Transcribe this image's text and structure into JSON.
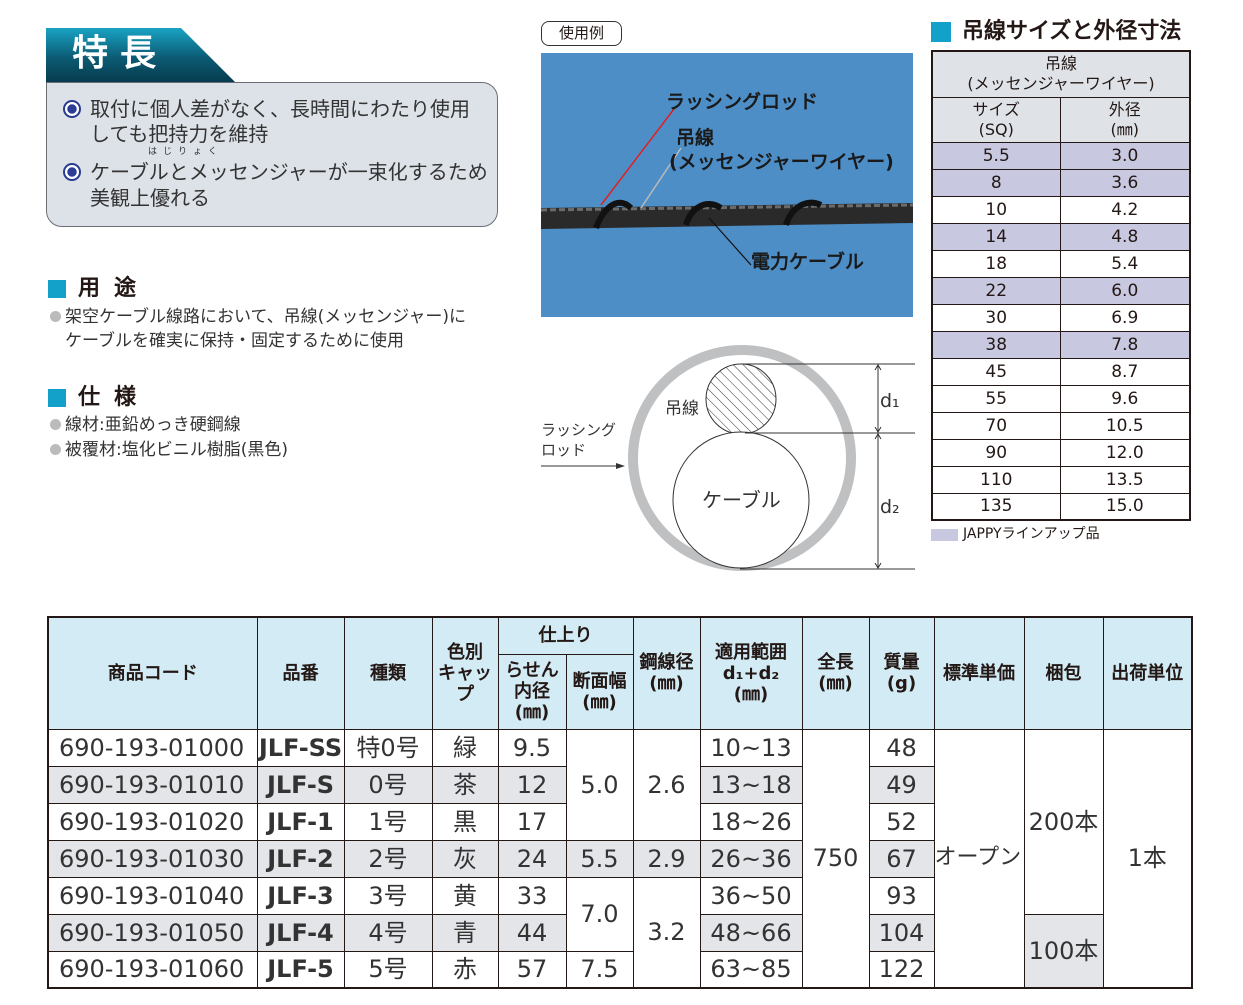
{
  "features": {
    "title": "特長",
    "items": [
      {
        "line1": "取付に個人差がなく、長時間にわたり使用",
        "line2": "しても把持力を維持"
      },
      {
        "line1": "ケーブルとメッセンジャーが一束化するため",
        "line2": "美観上優れる"
      }
    ],
    "ruby": "はじりょく"
  },
  "usage": {
    "title": "用途",
    "lines": [
      "架空ケーブル線路において、吊線(メッセンジャー)に",
      "ケーブルを確実に保持・固定するために使用"
    ]
  },
  "spec": {
    "title": "仕様",
    "items": [
      "線材:亜鉛めっき硬鋼線",
      "被覆材:塩化ビニル樹脂(黒色)"
    ]
  },
  "example": {
    "label": "使用例",
    "photo_labels": {
      "rod": "ラッシングロッド",
      "wire": "吊線",
      "wire_sub": "(メッセンジャーワイヤー)",
      "cable": "電力ケーブル"
    },
    "diagram_labels": {
      "wire": "吊線",
      "rod1": "ラッシング",
      "rod2": "ロッド",
      "cable": "ケーブル",
      "d1": "d₁",
      "d2": "d₂"
    }
  },
  "size_table": {
    "title": "吊線サイズと外径寸法",
    "group_header": "吊線",
    "group_sub": "(メッセンジャーワイヤー)",
    "col1": "サイズ",
    "col1_unit": "(SQ)",
    "col2": "外径",
    "col2_unit": "(㎜)",
    "rows": [
      {
        "size": "5.5",
        "od": "3.0",
        "lineup": true
      },
      {
        "size": "8",
        "od": "3.6",
        "lineup": true
      },
      {
        "size": "10",
        "od": "4.2",
        "lineup": false
      },
      {
        "size": "14",
        "od": "4.8",
        "lineup": true
      },
      {
        "size": "18",
        "od": "5.4",
        "lineup": false
      },
      {
        "size": "22",
        "od": "6.0",
        "lineup": true
      },
      {
        "size": "30",
        "od": "6.9",
        "lineup": false
      },
      {
        "size": "38",
        "od": "7.8",
        "lineup": true
      },
      {
        "size": "45",
        "od": "8.7",
        "lineup": false
      },
      {
        "size": "55",
        "od": "9.6",
        "lineup": false
      },
      {
        "size": "70",
        "od": "10.5",
        "lineup": false
      },
      {
        "size": "90",
        "od": "12.0",
        "lineup": false
      },
      {
        "size": "110",
        "od": "13.5",
        "lineup": false
      },
      {
        "size": "135",
        "od": "15.0",
        "lineup": false
      }
    ],
    "legend": "JAPPYラインアップ品",
    "highlight_color": "#c8c8e0"
  },
  "main_table": {
    "headers": {
      "code": "商品コード",
      "part": "品番",
      "type": "種類",
      "cap1": "色別",
      "cap2": "キャップ",
      "finish": "仕上り",
      "inner1": "らせん",
      "inner2": "内径",
      "inner3": "(㎜)",
      "width1": "断面幅",
      "width2": "(㎜)",
      "steel1": "鋼線径",
      "steel2": "(㎜)",
      "range1": "適用範囲",
      "range2": "d₁+d₂",
      "range3": "(㎜)",
      "len1": "全長",
      "len2": "(㎜)",
      "mass1": "質量",
      "mass2": "(g)",
      "price": "標準単価",
      "pack": "梱包",
      "unit": "出荷単位"
    },
    "rows": [
      {
        "code": "690-193-01000",
        "part": "JLF-SS",
        "type": "特0号",
        "cap": "緑",
        "inner": "9.5",
        "range": "10~13",
        "mass": "48"
      },
      {
        "code": "690-193-01010",
        "part": "JLF-S",
        "type": "0号",
        "cap": "茶",
        "inner": "12",
        "range": "13~18",
        "mass": "49"
      },
      {
        "code": "690-193-01020",
        "part": "JLF-1",
        "type": "1号",
        "cap": "黒",
        "inner": "17",
        "range": "18~26",
        "mass": "52"
      },
      {
        "code": "690-193-01030",
        "part": "JLF-2",
        "type": "2号",
        "cap": "灰",
        "inner": "24",
        "range": "26~36",
        "mass": "67"
      },
      {
        "code": "690-193-01040",
        "part": "JLF-3",
        "type": "3号",
        "cap": "黄",
        "inner": "33",
        "range": "36~50",
        "mass": "93"
      },
      {
        "code": "690-193-01050",
        "part": "JLF-4",
        "type": "4号",
        "cap": "青",
        "inner": "44",
        "range": "48~66",
        "mass": "104"
      },
      {
        "code": "690-193-01060",
        "part": "JLF-5",
        "type": "5号",
        "cap": "赤",
        "inner": "57",
        "range": "63~85",
        "mass": "122"
      }
    ],
    "width_groups": [
      {
        "value": "5.0",
        "span": 3
      },
      {
        "value": "5.5",
        "span": 1
      },
      {
        "value": "7.0",
        "span": 2
      },
      {
        "value": "7.5",
        "span": 1
      }
    ],
    "steel_groups": [
      {
        "value": "2.6",
        "span": 3
      },
      {
        "value": "2.9",
        "span": 1
      },
      {
        "value": "3.2",
        "span": 3
      }
    ],
    "length": "750",
    "price": "オープン",
    "pack_groups": [
      {
        "value": "200本",
        "span": 5
      },
      {
        "value": "100本",
        "span": 2
      }
    ],
    "unit": "1本",
    "header_color": "#d3ebf4",
    "stripe_color": "#e3e5e8"
  }
}
